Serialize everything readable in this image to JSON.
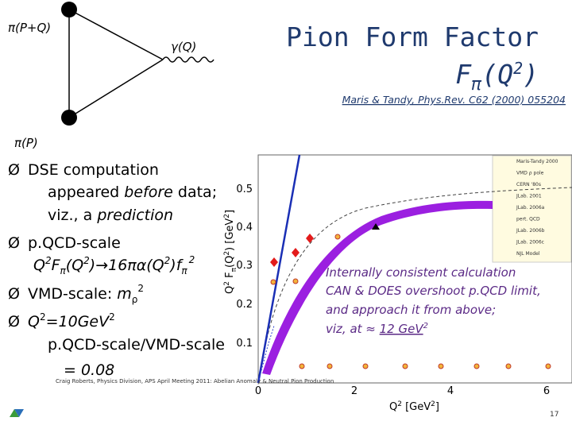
{
  "diagram": {
    "labels": [
      "π(P+Q)",
      "γ(Q)",
      "π(P)"
    ]
  },
  "title": {
    "line1": "Pion Form Factor",
    "line2": [
      "F",
      "π",
      "(Q",
      "2",
      ")"
    ],
    "citation": "Maris & Tandy, Phys.Rev. C62 (2000) 055204"
  },
  "bullet_marker": "Ø",
  "bullets": [
    {
      "lines": [
        [
          "DSE computation"
        ],
        [
          "appeared ",
          "before",
          " data;"
        ],
        [
          "viz., a ",
          "prediction"
        ]
      ]
    },
    {
      "lines": [
        [
          "p.QCD-scale"
        ],
        [
          "Q",
          "2",
          "F",
          "π",
          "(Q",
          "2",
          ")→16πα(Q",
          "2",
          ")f",
          "π",
          "2"
        ]
      ]
    },
    {
      "lines": [
        [
          "VMD-scale: ",
          "m",
          "ρ",
          "2"
        ]
      ]
    },
    {
      "lines": [
        [
          "Q",
          "2",
          "=10GeV",
          "2"
        ],
        [
          "p.QCD-scale/VMD-scale"
        ],
        [
          "= 0.08"
        ]
      ]
    }
  ],
  "plot": {
    "ylabel": [
      "Q",
      "2",
      " F",
      "π",
      "(Q",
      "2",
      ") [GeV",
      "2",
      "]"
    ],
    "xlabel": [
      "Q",
      "2",
      " [GeV",
      "2",
      "]"
    ],
    "xticks": [
      "0",
      "2",
      "4",
      "6"
    ],
    "yticks": [
      "0.1",
      "0.2",
      "0.3",
      "0.4",
      "0.5"
    ],
    "legend": [
      "Maris-Tandy 2000",
      "VMD ρ pole",
      "CERN '80s",
      "JLab. 2001",
      "JLab. 2006a",
      "pert. QCD",
      "JLab. 2006b",
      "JLab. 2006c",
      "NJL Model"
    ]
  },
  "annotation": [
    [
      "Internally consistent calculation"
    ],
    [
      "CAN & DOES overshoot p.QCD limit,"
    ],
    [
      "and approach it from above;"
    ],
    [
      "viz, at ≈ ",
      "12 GeV",
      "2"
    ]
  ],
  "footer": "Craig Roberts, Physics Division, APS April Meeting 2011: Abelian Anomaly & Neutral Pion Production",
  "page": "17"
}
